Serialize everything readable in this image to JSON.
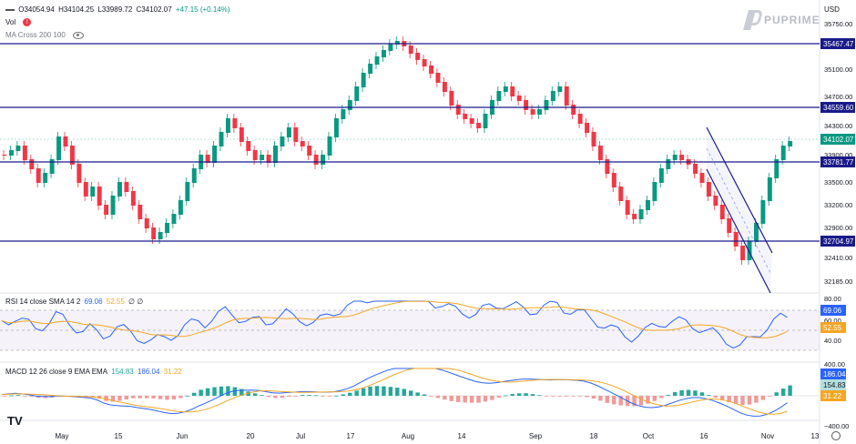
{
  "main_header": {
    "icon": "dash-icon",
    "ohlc": "O34054.94 H34104.25 L33989.72 C34102.07 +47.15 (+0.14%)",
    "open": "O34054.94",
    "high": "H34104.25",
    "low": "L33989.72",
    "close": "C34102.07",
    "change": "+47.15 (+0.14%)",
    "vol_label": "Vol",
    "ma_label": "MA Cross 200 100"
  },
  "currency": "USD",
  "brand": "PUPRIME",
  "price_axis": {
    "ticks": [
      "35750.00",
      "35467.47",
      "35100.00",
      "34700.00",
      "34559.60",
      "34300.00",
      "34102.07",
      "33900.00",
      "33781.77",
      "33500.00",
      "33200.00",
      "32900.00",
      "32704.97",
      "32410.00",
      "32185.00"
    ]
  },
  "horizontal_levels": [
    "35467.47",
    "34559.60",
    "33781.77",
    "32704.97"
  ],
  "current_price": "34102.07",
  "rsi": {
    "label": "RSI 14 close SMA 14 2",
    "value": "69.06",
    "sma": "52.55",
    "extra": "∅ ∅",
    "axis": [
      "80.00",
      "60.00",
      "40.00"
    ]
  },
  "macd": {
    "label": "MACD 12 26 close 9 EMA EMA",
    "hist": "154.83",
    "macd": "186.04",
    "signal": "31.22",
    "axis": [
      "400.00",
      "−400.00"
    ]
  },
  "time_axis": [
    "May",
    "15",
    "Jun",
    "20",
    "Jul",
    "17",
    "Aug",
    "14",
    "Sep",
    "18",
    "Oct",
    "16",
    "Nov",
    "13"
  ],
  "colors": {
    "up": "#089981",
    "down": "#f23645",
    "level": "#1a1a8c",
    "rsi": "#2962ff",
    "rsi_sma": "#f5a623"
  }
}
